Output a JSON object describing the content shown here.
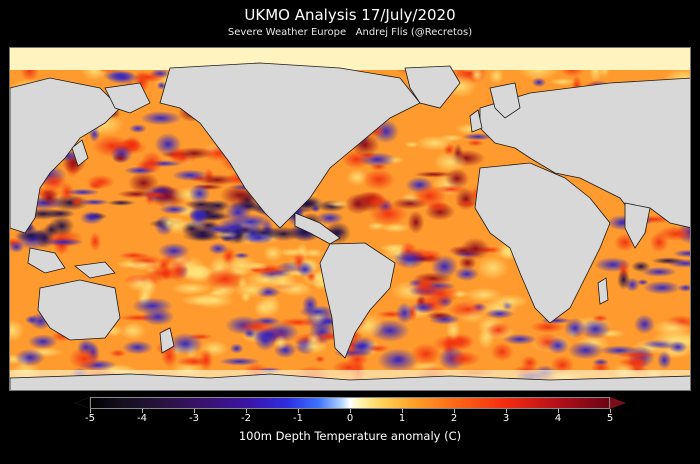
{
  "header": {
    "title": "UKMO Analysis 17/July/2020",
    "subtitle": "Severe Weather Europe   Andrej Flis (@Recretos)"
  },
  "colorbar": {
    "label": "100m Depth Temperature anomaly (C)",
    "ticks": [
      "-5",
      "-4",
      "-3",
      "-2",
      "-1",
      "0",
      "1",
      "2",
      "3",
      "4",
      "5"
    ],
    "range": [
      -5,
      5
    ]
  },
  "colors": {
    "land": "#d8d8d8",
    "coast": "#1a1a1a",
    "cold": "#2e2ee0",
    "warm": "#ff6a16"
  }
}
